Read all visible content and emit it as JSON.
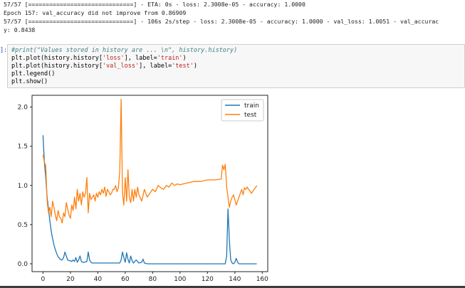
{
  "output": {
    "line1": "57/57 [==============================] - ETA: 0s - loss: 2.3008e-05 - accuracy: 1.0000",
    "line2": "Epoch 157: val_accuracy did not improve from 0.86909",
    "line3": "57/57 [==============================] - 106s 2s/step - loss: 2.3008e-05 - accuracy: 1.0000 - val_loss: 1.0051 - val_accurac",
    "line4": "y: 0.8438"
  },
  "cell": {
    "prompt": "]:",
    "code": {
      "comment": "#print(\"Values stored in history are ... \\n\", history.history)",
      "l2a": "plt.plot(history.history[",
      "l2s1": "'loss'",
      "l2b": "], label=",
      "l2s2": "'train'",
      "l2c": ")",
      "l3a": "plt.plot(history.history[",
      "l3s1": "'val_loss'",
      "l3b": "], label=",
      "l3s2": "'test'",
      "l3c": ")",
      "l4": "plt.legend()",
      "l5": "plt.show()"
    }
  },
  "chart_data": {
    "type": "line",
    "title": "",
    "xlabel": "",
    "ylabel": "",
    "xlim": [
      -8,
      164
    ],
    "ylim": [
      -0.1,
      2.15
    ],
    "xticks": [
      0,
      20,
      40,
      60,
      80,
      100,
      120,
      140,
      160
    ],
    "yticks": [
      0.0,
      0.5,
      1.0,
      1.5,
      2.0
    ],
    "ytick_labels": [
      "0.0",
      "0.5",
      "1.0",
      "1.5",
      "2.0"
    ],
    "legend": "top-right",
    "colors": {
      "train": "#1f77b4",
      "test": "#ff7f0e"
    },
    "series": [
      {
        "name": "train",
        "x": [
          0,
          1,
          2,
          3,
          4,
          5,
          6,
          7,
          8,
          9,
          10,
          11,
          12,
          13,
          14,
          15,
          16,
          17,
          18,
          19,
          20,
          21,
          22,
          23,
          24,
          25,
          26,
          27,
          28,
          29,
          30,
          32,
          33,
          34,
          35,
          36,
          40,
          45,
          50,
          55,
          56,
          57,
          58,
          59,
          60,
          61,
          62,
          63,
          64,
          65,
          66,
          68,
          70,
          72,
          73,
          74,
          76,
          80,
          90,
          100,
          110,
          120,
          130,
          131,
          132,
          133,
          134,
          135,
          136,
          137,
          138,
          139,
          140,
          141,
          142,
          143,
          145,
          150,
          156
        ],
        "y": [
          1.64,
          1.3,
          1.1,
          0.85,
          0.7,
          0.55,
          0.42,
          0.32,
          0.24,
          0.18,
          0.13,
          0.09,
          0.07,
          0.05,
          0.05,
          0.08,
          0.15,
          0.1,
          0.05,
          0.04,
          0.04,
          0.03,
          0.05,
          0.03,
          0.08,
          0.02,
          0.05,
          0.1,
          0.03,
          0.02,
          0.02,
          0.03,
          0.15,
          0.05,
          0.02,
          0.01,
          0.01,
          0.01,
          0.01,
          0.01,
          0.01,
          0.05,
          0.15,
          0.08,
          0.02,
          0.14,
          0.06,
          0.01,
          0.1,
          0.04,
          0.01,
          0.05,
          0.01,
          0.02,
          0.06,
          0.01,
          0.0,
          0.0,
          0.0,
          0.0,
          0.0,
          0.0,
          0.0,
          0.0,
          0.0,
          0.0,
          0.1,
          0.7,
          0.3,
          0.05,
          0.01,
          0.0,
          0.02,
          0.07,
          0.02,
          0.0,
          0.0,
          0.0,
          0.0
        ]
      },
      {
        "name": "test",
        "x": [
          0,
          1,
          2,
          3,
          4,
          5,
          6,
          7,
          8,
          9,
          10,
          11,
          12,
          13,
          14,
          15,
          16,
          17,
          18,
          19,
          20,
          21,
          22,
          23,
          24,
          25,
          26,
          27,
          28,
          29,
          30,
          31,
          32,
          33,
          34,
          35,
          36,
          37,
          38,
          39,
          40,
          41,
          42,
          43,
          44,
          45,
          46,
          47,
          48,
          49,
          50,
          51,
          52,
          53,
          54,
          55,
          56,
          57,
          58,
          59,
          60,
          61,
          62,
          63,
          64,
          65,
          66,
          67,
          68,
          69,
          70,
          72,
          74,
          76,
          78,
          80,
          82,
          84,
          86,
          88,
          90,
          92,
          94,
          96,
          98,
          100,
          105,
          110,
          115,
          120,
          125,
          130,
          131,
          132,
          133,
          134,
          135,
          136,
          137,
          138,
          139,
          140,
          141,
          142,
          143,
          144,
          145,
          146,
          147,
          148,
          149,
          150,
          151,
          152,
          153,
          154,
          155,
          156
        ],
        "y": [
          1.39,
          1.3,
          1.25,
          0.8,
          0.65,
          0.72,
          0.6,
          0.8,
          0.72,
          0.62,
          0.55,
          0.68,
          0.6,
          0.58,
          0.52,
          0.65,
          0.6,
          0.78,
          0.7,
          0.62,
          0.58,
          0.75,
          0.68,
          0.85,
          0.7,
          0.95,
          0.8,
          0.9,
          0.75,
          0.92,
          0.85,
          0.9,
          1.1,
          0.65,
          0.9,
          0.82,
          0.85,
          0.88,
          0.8,
          0.9,
          0.85,
          0.92,
          0.88,
          0.95,
          0.9,
          0.98,
          0.86,
          0.95,
          0.92,
          0.88,
          0.9,
          0.95,
          0.95,
          1.0,
          0.92,
          0.97,
          1.18,
          2.1,
          0.9,
          0.75,
          1.1,
          0.8,
          1.2,
          0.85,
          0.78,
          0.95,
          0.8,
          0.95,
          0.85,
          0.98,
          0.88,
          0.8,
          0.95,
          0.85,
          0.9,
          0.95,
          0.92,
          1.0,
          0.97,
          0.95,
          1.0,
          0.98,
          1.03,
          1.0,
          1.02,
          1.01,
          1.03,
          1.05,
          1.05,
          1.07,
          1.07,
          1.08,
          1.26,
          1.2,
          1.27,
          0.98,
          0.85,
          0.72,
          0.8,
          0.85,
          0.88,
          0.82,
          0.75,
          0.8,
          0.85,
          0.9,
          0.95,
          0.88,
          0.97,
          0.95,
          0.98,
          0.95,
          0.93,
          0.9,
          0.92,
          0.95,
          0.97,
          1.0
        ]
      }
    ]
  }
}
